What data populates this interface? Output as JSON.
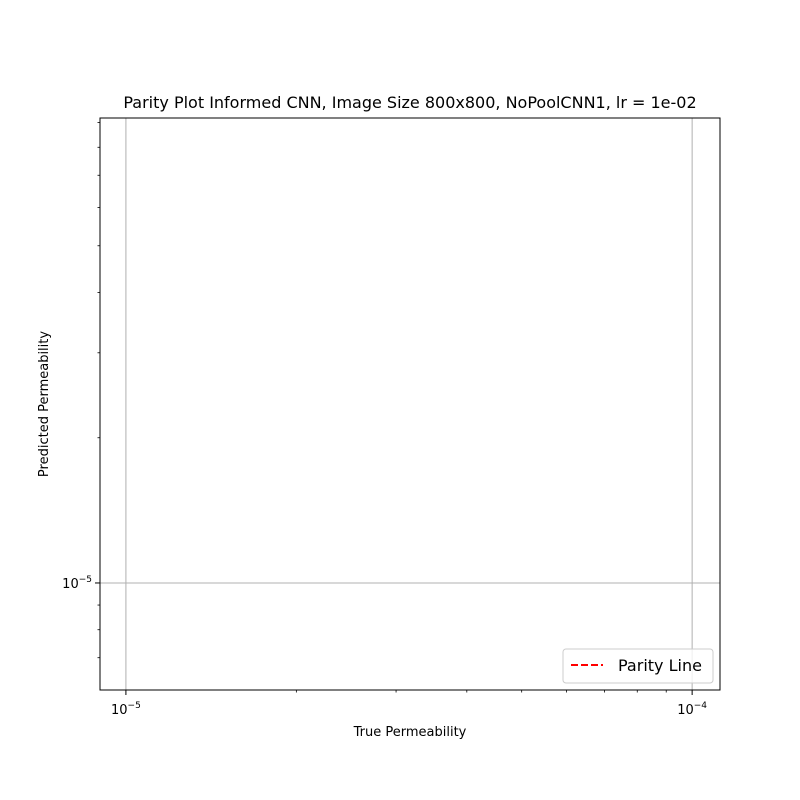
{
  "chart_data": {
    "type": "scatter",
    "title": "Parity Plot Informed CNN, Image Size 800x800, NoPoolCNN1, lr = 1e-02",
    "xlabel": "True Permeability",
    "ylabel": "Predicted Permeability",
    "xscale": "log",
    "yscale": "log",
    "xlim": [
      9e-06,
      0.000112
    ],
    "ylim": [
      6e-06,
      9.2e-05
    ],
    "xticks": [
      {
        "value": 1e-05,
        "base": "10",
        "exp": "−5"
      },
      {
        "value": 0.0001,
        "base": "10",
        "exp": "−4"
      }
    ],
    "yticks": [
      {
        "value": 1e-05,
        "base": "10",
        "exp": "−5"
      }
    ],
    "grid": true,
    "legend": {
      "placement": "lower-right",
      "entries": [
        {
          "label": "Parity Line",
          "style": "dashed",
          "color": "#ff0000"
        }
      ]
    },
    "series": [
      {
        "name": "Parity Line",
        "style": "dashed",
        "color": "#ff0000",
        "x": [],
        "y": []
      }
    ]
  },
  "colors": {
    "parity_line": "#ff0000",
    "grid": "#b0b0b0",
    "axes": "#000000",
    "legend_border": "#cccccc"
  }
}
